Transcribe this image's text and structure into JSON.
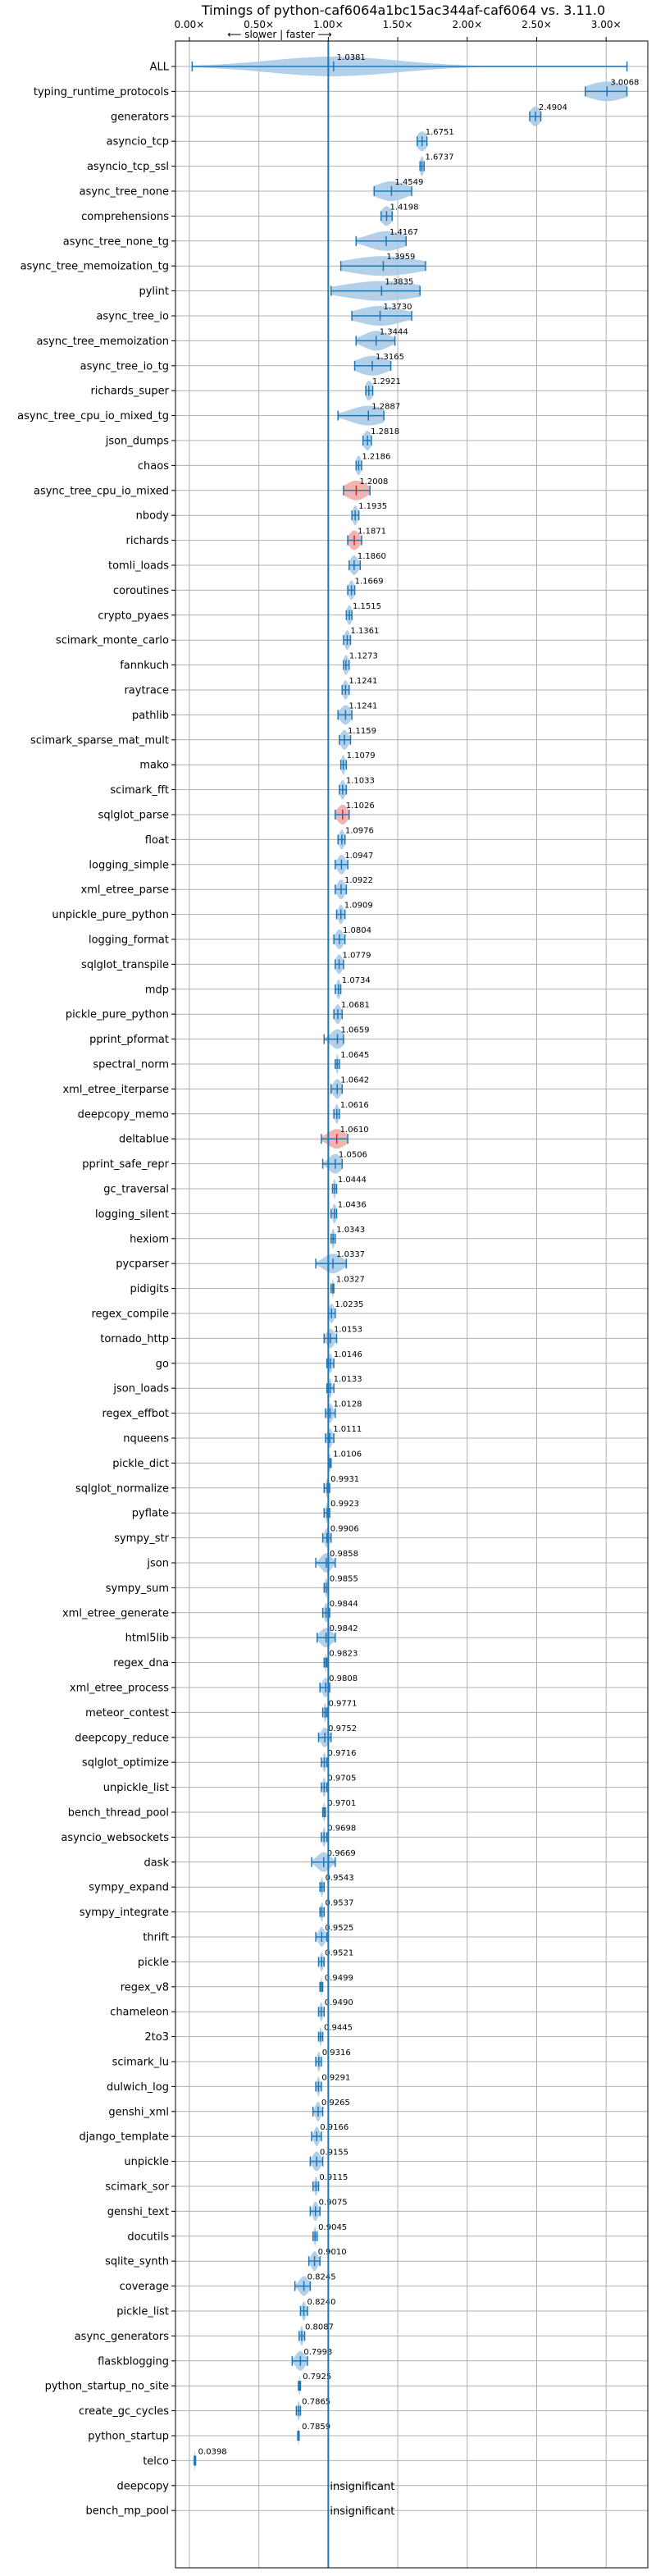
{
  "chart_data": {
    "type": "violin",
    "title": "Timings of python-caf6064a1bc15ac344af-caf6064 vs. 3.11.0",
    "direction_label": "⟵ slower | faster ⟶",
    "xlim": [
      -0.1,
      3.3
    ],
    "xticks": [
      "0.00×",
      "0.50×",
      "1.00×",
      "1.50×",
      "2.00×",
      "2.50×",
      "3.00×"
    ],
    "xtick_values": [
      0,
      0.5,
      1,
      1.5,
      2,
      2.5,
      3
    ],
    "reference_line": 1.0,
    "grid": true,
    "colors": {
      "body": "#1f77b4",
      "fill": "#a6c8e6",
      "highlight": "#d62728",
      "grid": "#b0b0b0"
    },
    "benchmarks": [
      {
        "name": "ALL",
        "value": "1.0381",
        "v": 1.0381,
        "lo": 0.02,
        "hi": 3.15,
        "spread": 0.5
      },
      {
        "name": "typing_runtime_protocols",
        "value": "3.0068",
        "v": 3.0068,
        "lo": 2.85,
        "hi": 3.15,
        "spread": 0.15
      },
      {
        "name": "generators",
        "value": "2.4904",
        "v": 2.4904,
        "lo": 2.45,
        "hi": 2.53,
        "spread": 0.04
      },
      {
        "name": "asyncio_tcp",
        "value": "1.6751",
        "v": 1.6751,
        "lo": 1.64,
        "hi": 1.71,
        "spread": 0.04
      },
      {
        "name": "asyncio_tcp_ssl",
        "value": "1.6737",
        "v": 1.6737,
        "lo": 1.66,
        "hi": 1.69,
        "spread": 0.015
      },
      {
        "name": "async_tree_none",
        "value": "1.4549",
        "v": 1.4549,
        "lo": 1.33,
        "hi": 1.6,
        "spread": 0.12
      },
      {
        "name": "comprehensions",
        "value": "1.4198",
        "v": 1.4198,
        "lo": 1.38,
        "hi": 1.46,
        "spread": 0.04
      },
      {
        "name": "async_tree_none_tg",
        "value": "1.4167",
        "v": 1.4167,
        "lo": 1.2,
        "hi": 1.56,
        "spread": 0.14
      },
      {
        "name": "async_tree_memoization_tg",
        "value": "1.3959",
        "v": 1.3959,
        "lo": 1.09,
        "hi": 1.7,
        "spread": 0.28
      },
      {
        "name": "pylint",
        "value": "1.3835",
        "v": 1.3835,
        "lo": 1.02,
        "hi": 1.66,
        "spread": 0.3
      },
      {
        "name": "async_tree_io",
        "value": "1.3730",
        "v": 1.373,
        "lo": 1.17,
        "hi": 1.6,
        "spread": 0.18
      },
      {
        "name": "async_tree_memoization",
        "value": "1.3444",
        "v": 1.3444,
        "lo": 1.2,
        "hi": 1.48,
        "spread": 0.1
      },
      {
        "name": "async_tree_io_tg",
        "value": "1.3165",
        "v": 1.3165,
        "lo": 1.19,
        "hi": 1.45,
        "spread": 0.12
      },
      {
        "name": "richards_super",
        "value": "1.2921",
        "v": 1.2921,
        "lo": 1.27,
        "hi": 1.32,
        "spread": 0.03
      },
      {
        "name": "async_tree_cpu_io_mixed_tg",
        "value": "1.2887",
        "v": 1.2887,
        "lo": 1.07,
        "hi": 1.4,
        "spread": 0.14
      },
      {
        "name": "json_dumps",
        "value": "1.2818",
        "v": 1.2818,
        "lo": 1.25,
        "hi": 1.31,
        "spread": 0.03
      },
      {
        "name": "chaos",
        "value": "1.2186",
        "v": 1.2186,
        "lo": 1.2,
        "hi": 1.24,
        "spread": 0.02
      },
      {
        "name": "async_tree_cpu_io_mixed",
        "value": "1.2008",
        "v": 1.2008,
        "lo": 1.11,
        "hi": 1.3,
        "spread": 0.08,
        "hl": true
      },
      {
        "name": "nbody",
        "value": "1.1935",
        "v": 1.1935,
        "lo": 1.17,
        "hi": 1.22,
        "spread": 0.02
      },
      {
        "name": "richards",
        "value": "1.1871",
        "v": 1.1871,
        "lo": 1.14,
        "hi": 1.24,
        "spread": 0.04,
        "hl": true
      },
      {
        "name": "tomli_loads",
        "value": "1.1860",
        "v": 1.186,
        "lo": 1.15,
        "hi": 1.23,
        "spread": 0.03
      },
      {
        "name": "coroutines",
        "value": "1.1669",
        "v": 1.1669,
        "lo": 1.14,
        "hi": 1.19,
        "spread": 0.02
      },
      {
        "name": "crypto_pyaes",
        "value": "1.1515",
        "v": 1.1515,
        "lo": 1.13,
        "hi": 1.17,
        "spread": 0.02
      },
      {
        "name": "scimark_monte_carlo",
        "value": "1.1361",
        "v": 1.1361,
        "lo": 1.11,
        "hi": 1.16,
        "spread": 0.02
      },
      {
        "name": "fannkuch",
        "value": "1.1273",
        "v": 1.1273,
        "lo": 1.11,
        "hi": 1.15,
        "spread": 0.02
      },
      {
        "name": "raytrace",
        "value": "1.1241",
        "v": 1.1241,
        "lo": 1.1,
        "hi": 1.15,
        "spread": 0.02
      },
      {
        "name": "pathlib",
        "value": "1.1241",
        "v": 1.1241,
        "lo": 1.07,
        "hi": 1.17,
        "spread": 0.04
      },
      {
        "name": "scimark_sparse_mat_mult",
        "value": "1.1159",
        "v": 1.1159,
        "lo": 1.08,
        "hi": 1.16,
        "spread": 0.03
      },
      {
        "name": "mako",
        "value": "1.1079",
        "v": 1.1079,
        "lo": 1.09,
        "hi": 1.13,
        "spread": 0.015
      },
      {
        "name": "scimark_fft",
        "value": "1.1033",
        "v": 1.1033,
        "lo": 1.08,
        "hi": 1.13,
        "spread": 0.02
      },
      {
        "name": "sqlglot_parse",
        "value": "1.1026",
        "v": 1.1026,
        "lo": 1.05,
        "hi": 1.15,
        "spread": 0.04,
        "hl": true
      },
      {
        "name": "float",
        "value": "1.0976",
        "v": 1.0976,
        "lo": 1.07,
        "hi": 1.12,
        "spread": 0.02
      },
      {
        "name": "logging_simple",
        "value": "1.0947",
        "v": 1.0947,
        "lo": 1.05,
        "hi": 1.14,
        "spread": 0.03
      },
      {
        "name": "xml_etree_parse",
        "value": "1.0922",
        "v": 1.0922,
        "lo": 1.05,
        "hi": 1.13,
        "spread": 0.03
      },
      {
        "name": "unpickle_pure_python",
        "value": "1.0909",
        "v": 1.0909,
        "lo": 1.06,
        "hi": 1.12,
        "spread": 0.02
      },
      {
        "name": "logging_format",
        "value": "1.0804",
        "v": 1.0804,
        "lo": 1.04,
        "hi": 1.12,
        "spread": 0.03
      },
      {
        "name": "sqlglot_transpile",
        "value": "1.0779",
        "v": 1.0779,
        "lo": 1.05,
        "hi": 1.11,
        "spread": 0.025
      },
      {
        "name": "mdp",
        "value": "1.0734",
        "v": 1.0734,
        "lo": 1.05,
        "hi": 1.09,
        "spread": 0.015
      },
      {
        "name": "pickle_pure_python",
        "value": "1.0681",
        "v": 1.0681,
        "lo": 1.04,
        "hi": 1.1,
        "spread": 0.025
      },
      {
        "name": "pprint_pformat",
        "value": "1.0659",
        "v": 1.0659,
        "lo": 0.97,
        "hi": 1.11,
        "spread": 0.05
      },
      {
        "name": "spectral_norm",
        "value": "1.0645",
        "v": 1.0645,
        "lo": 1.05,
        "hi": 1.08,
        "spread": 0.01
      },
      {
        "name": "xml_etree_iterparse",
        "value": "1.0642",
        "v": 1.0642,
        "lo": 1.02,
        "hi": 1.1,
        "spread": 0.03
      },
      {
        "name": "deepcopy_memo",
        "value": "1.0616",
        "v": 1.0616,
        "lo": 1.04,
        "hi": 1.08,
        "spread": 0.015
      },
      {
        "name": "deltablue",
        "value": "1.0610",
        "v": 1.061,
        "lo": 0.95,
        "hi": 1.14,
        "spread": 0.07,
        "hl": true
      },
      {
        "name": "pprint_safe_repr",
        "value": "1.0506",
        "v": 1.0506,
        "lo": 0.96,
        "hi": 1.1,
        "spread": 0.05
      },
      {
        "name": "gc_traversal",
        "value": "1.0444",
        "v": 1.0444,
        "lo": 1.03,
        "hi": 1.06,
        "spread": 0.01
      },
      {
        "name": "logging_silent",
        "value": "1.0436",
        "v": 1.0436,
        "lo": 1.02,
        "hi": 1.06,
        "spread": 0.015
      },
      {
        "name": "hexiom",
        "value": "1.0343",
        "v": 1.0343,
        "lo": 1.02,
        "hi": 1.05,
        "spread": 0.012
      },
      {
        "name": "pycparser",
        "value": "1.0337",
        "v": 1.0337,
        "lo": 0.91,
        "hi": 1.13,
        "spread": 0.07
      },
      {
        "name": "pidigits",
        "value": "1.0327",
        "v": 1.0327,
        "lo": 1.02,
        "hi": 1.04,
        "spread": 0.006
      },
      {
        "name": "regex_compile",
        "value": "1.0235",
        "v": 1.0235,
        "lo": 1.0,
        "hi": 1.05,
        "spread": 0.02
      },
      {
        "name": "tornado_http",
        "value": "1.0153",
        "v": 1.0153,
        "lo": 0.97,
        "hi": 1.06,
        "spread": 0.03
      },
      {
        "name": "go",
        "value": "1.0146",
        "v": 1.0146,
        "lo": 0.99,
        "hi": 1.04,
        "spread": 0.015
      },
      {
        "name": "json_loads",
        "value": "1.0133",
        "v": 1.0133,
        "lo": 0.99,
        "hi": 1.04,
        "spread": 0.012
      },
      {
        "name": "regex_effbot",
        "value": "1.0128",
        "v": 1.0128,
        "lo": 0.98,
        "hi": 1.05,
        "spread": 0.02
      },
      {
        "name": "nqueens",
        "value": "1.0111",
        "v": 1.0111,
        "lo": 0.98,
        "hi": 1.04,
        "spread": 0.02
      },
      {
        "name": "pickle_dict",
        "value": "1.0106",
        "v": 1.0106,
        "lo": 1.0,
        "hi": 1.02,
        "spread": 0.006
      },
      {
        "name": "sqlglot_normalize",
        "value": "0.9931",
        "v": 0.9931,
        "lo": 0.97,
        "hi": 1.01,
        "spread": 0.012
      },
      {
        "name": "pyflate",
        "value": "0.9923",
        "v": 0.9923,
        "lo": 0.97,
        "hi": 1.01,
        "spread": 0.012
      },
      {
        "name": "sympy_str",
        "value": "0.9906",
        "v": 0.9906,
        "lo": 0.96,
        "hi": 1.02,
        "spread": 0.02
      },
      {
        "name": "json",
        "value": "0.9858",
        "v": 0.9858,
        "lo": 0.91,
        "hi": 1.05,
        "spread": 0.04
      },
      {
        "name": "sympy_sum",
        "value": "0.9855",
        "v": 0.9855,
        "lo": 0.97,
        "hi": 1.0,
        "spread": 0.01
      },
      {
        "name": "xml_etree_generate",
        "value": "0.9844",
        "v": 0.9844,
        "lo": 0.96,
        "hi": 1.01,
        "spread": 0.015
      },
      {
        "name": "html5lib",
        "value": "0.9842",
        "v": 0.9842,
        "lo": 0.92,
        "hi": 1.05,
        "spread": 0.045
      },
      {
        "name": "regex_dna",
        "value": "0.9823",
        "v": 0.9823,
        "lo": 0.97,
        "hi": 0.99,
        "spread": 0.006
      },
      {
        "name": "xml_etree_process",
        "value": "0.9808",
        "v": 0.9808,
        "lo": 0.94,
        "hi": 1.01,
        "spread": 0.025
      },
      {
        "name": "meteor_contest",
        "value": "0.9771",
        "v": 0.9771,
        "lo": 0.96,
        "hi": 0.99,
        "spread": 0.01
      },
      {
        "name": "deepcopy_reduce",
        "value": "0.9752",
        "v": 0.9752,
        "lo": 0.93,
        "hi": 1.02,
        "spread": 0.03
      },
      {
        "name": "sqlglot_optimize",
        "value": "0.9716",
        "v": 0.9716,
        "lo": 0.95,
        "hi": 0.99,
        "spread": 0.012
      },
      {
        "name": "unpickle_list",
        "value": "0.9705",
        "v": 0.9705,
        "lo": 0.95,
        "hi": 0.99,
        "spread": 0.012
      },
      {
        "name": "bench_thread_pool",
        "value": "0.9701",
        "v": 0.9701,
        "lo": 0.96,
        "hi": 0.98,
        "spread": 0.008
      },
      {
        "name": "asyncio_websockets",
        "value": "0.9698",
        "v": 0.9698,
        "lo": 0.95,
        "hi": 0.99,
        "spread": 0.012
      },
      {
        "name": "dask",
        "value": "0.9669",
        "v": 0.9669,
        "lo": 0.88,
        "hi": 1.05,
        "spread": 0.05
      },
      {
        "name": "sympy_expand",
        "value": "0.9543",
        "v": 0.9543,
        "lo": 0.94,
        "hi": 0.97,
        "spread": 0.01
      },
      {
        "name": "sympy_integrate",
        "value": "0.9537",
        "v": 0.9537,
        "lo": 0.94,
        "hi": 0.97,
        "spread": 0.01
      },
      {
        "name": "thrift",
        "value": "0.9525",
        "v": 0.9525,
        "lo": 0.91,
        "hi": 0.99,
        "spread": 0.025
      },
      {
        "name": "pickle",
        "value": "0.9521",
        "v": 0.9521,
        "lo": 0.93,
        "hi": 0.97,
        "spread": 0.012
      },
      {
        "name": "regex_v8",
        "value": "0.9499",
        "v": 0.9499,
        "lo": 0.94,
        "hi": 0.96,
        "spread": 0.006
      },
      {
        "name": "chameleon",
        "value": "0.9490",
        "v": 0.949,
        "lo": 0.93,
        "hi": 0.97,
        "spread": 0.012
      },
      {
        "name": "2to3",
        "value": "0.9445",
        "v": 0.9445,
        "lo": 0.93,
        "hi": 0.96,
        "spread": 0.008
      },
      {
        "name": "scimark_lu",
        "value": "0.9316",
        "v": 0.9316,
        "lo": 0.91,
        "hi": 0.95,
        "spread": 0.012
      },
      {
        "name": "dulwich_log",
        "value": "0.9291",
        "v": 0.9291,
        "lo": 0.91,
        "hi": 0.95,
        "spread": 0.012
      },
      {
        "name": "genshi_xml",
        "value": "0.9265",
        "v": 0.9265,
        "lo": 0.89,
        "hi": 0.96,
        "spread": 0.02
      },
      {
        "name": "django_template",
        "value": "0.9166",
        "v": 0.9166,
        "lo": 0.88,
        "hi": 0.95,
        "spread": 0.02
      },
      {
        "name": "unpickle",
        "value": "0.9155",
        "v": 0.9155,
        "lo": 0.87,
        "hi": 0.96,
        "spread": 0.03
      },
      {
        "name": "scimark_sor",
        "value": "0.9115",
        "v": 0.9115,
        "lo": 0.89,
        "hi": 0.93,
        "spread": 0.012
      },
      {
        "name": "genshi_text",
        "value": "0.9075",
        "v": 0.9075,
        "lo": 0.87,
        "hi": 0.94,
        "spread": 0.02
      },
      {
        "name": "docutils",
        "value": "0.9045",
        "v": 0.9045,
        "lo": 0.89,
        "hi": 0.92,
        "spread": 0.008
      },
      {
        "name": "sqlite_synth",
        "value": "0.9010",
        "v": 0.901,
        "lo": 0.86,
        "hi": 0.94,
        "spread": 0.025
      },
      {
        "name": "coverage",
        "value": "0.8245",
        "v": 0.8245,
        "lo": 0.76,
        "hi": 0.87,
        "spread": 0.035
      },
      {
        "name": "pickle_list",
        "value": "0.8240",
        "v": 0.824,
        "lo": 0.8,
        "hi": 0.85,
        "spread": 0.015
      },
      {
        "name": "async_generators",
        "value": "0.8087",
        "v": 0.8087,
        "lo": 0.79,
        "hi": 0.83,
        "spread": 0.012
      },
      {
        "name": "flaskblogging",
        "value": "0.7993",
        "v": 0.7993,
        "lo": 0.74,
        "hi": 0.85,
        "spread": 0.035
      },
      {
        "name": "python_startup_no_site",
        "value": "0.7925",
        "v": 0.7925,
        "lo": 0.785,
        "hi": 0.8,
        "spread": 0.005
      },
      {
        "name": "create_gc_cycles",
        "value": "0.7865",
        "v": 0.7865,
        "lo": 0.77,
        "hi": 0.8,
        "spread": 0.01
      },
      {
        "name": "python_startup",
        "value": "0.7859",
        "v": 0.7859,
        "lo": 0.78,
        "hi": 0.79,
        "spread": 0.004
      },
      {
        "name": "telco",
        "value": "0.0398",
        "v": 0.0398,
        "lo": 0.035,
        "hi": 0.045,
        "spread": 0.004
      },
      {
        "name": "deepcopy",
        "value": "insignificant",
        "v": null
      },
      {
        "name": "bench_mp_pool",
        "value": "insignificant",
        "v": null
      }
    ]
  }
}
